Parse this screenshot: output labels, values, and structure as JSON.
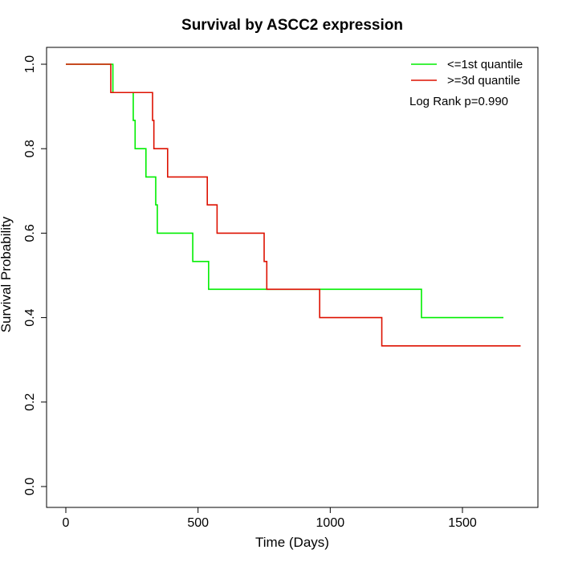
{
  "chart_data": {
    "type": "line",
    "title": "Survival by ASCC2 expression",
    "xlabel": "Time (Days)",
    "ylabel": "Survival Probability",
    "xlim": [
      0,
      1760
    ],
    "ylim": [
      0,
      1.0
    ],
    "xticks": [
      "0",
      "500",
      "1000",
      "1500"
    ],
    "yticks": [
      "0.0",
      "0.2",
      "0.4",
      "0.6",
      "0.8",
      "1.0"
    ],
    "xtick_values": [
      0,
      500,
      1000,
      1500
    ],
    "ytick_values": [
      0.0,
      0.2,
      0.4,
      0.6,
      0.8,
      1.0
    ],
    "step": true,
    "grid": false,
    "legend_position": "top-right",
    "annotation": "Log Rank p=0.990",
    "series": [
      {
        "name": "<=1st quantile",
        "color": "#00ee00",
        "x": [
          0,
          178,
          255,
          262,
          303,
          340,
          346,
          480,
          540,
          1345,
          1655
        ],
        "y": [
          1.0,
          0.933,
          0.867,
          0.8,
          0.733,
          0.667,
          0.6,
          0.533,
          0.467,
          0.4,
          0.4
        ]
      },
      {
        "name": ">=3d quantile",
        "color": "#dd1100",
        "x": [
          0,
          170,
          328,
          333,
          385,
          535,
          572,
          750,
          760,
          960,
          1195,
          1720
        ],
        "y": [
          1.0,
          0.933,
          0.867,
          0.8,
          0.733,
          0.667,
          0.6,
          0.533,
          0.467,
          0.4,
          0.333,
          0.333
        ]
      }
    ]
  }
}
